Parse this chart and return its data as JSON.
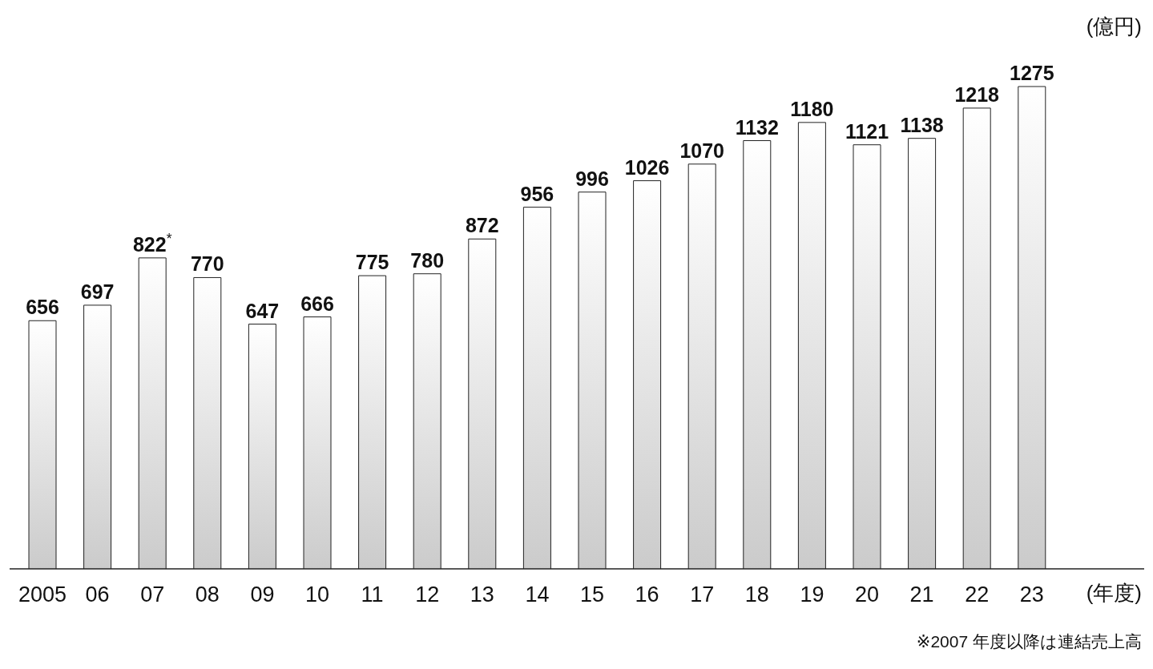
{
  "chart_data": {
    "type": "bar",
    "ylabel": "(億円)",
    "xlabel": "(年度)",
    "categories": [
      "2005",
      "06",
      "07",
      "08",
      "09",
      "10",
      "11",
      "12",
      "13",
      "14",
      "15",
      "16",
      "17",
      "18",
      "19",
      "20",
      "21",
      "22",
      "23"
    ],
    "values": [
      656,
      697,
      822,
      770,
      647,
      666,
      775,
      780,
      872,
      956,
      996,
      1026,
      1070,
      1132,
      1180,
      1121,
      1138,
      1218,
      1275
    ],
    "value_labels": [
      "656",
      "697",
      "822$^{*}$",
      "770",
      "647",
      "666",
      "775",
      "780",
      "872",
      "956",
      "996",
      "1026",
      "1070",
      "1132",
      "1180",
      "1121",
      "1138",
      "1218",
      "1275"
    ],
    "color": "#cbcbcb",
    "annotations": [
      "※2007 年度以降は連結売上高"
    ]
  }
}
